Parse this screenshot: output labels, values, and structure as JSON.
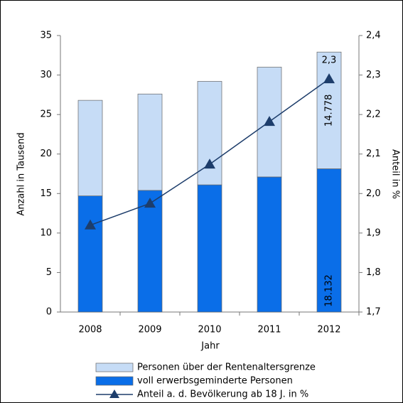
{
  "chart_data": {
    "type": "bar",
    "x_label": "Jahr",
    "y_label": "Anzahl in Tausend",
    "y2_label": "Anteil in %",
    "categories": [
      "2008",
      "2009",
      "2010",
      "2011",
      "2012"
    ],
    "stacked": true,
    "series": [
      {
        "name": "voll erwerbsgeminderte Personen",
        "color": "#0a6ee8",
        "values": [
          14.7,
          15.4,
          16.1,
          17.1,
          18.132
        ],
        "value_labels": [
          null,
          null,
          null,
          null,
          "18.132"
        ]
      },
      {
        "name": "Personen über der Rentenaltersgrenze",
        "color": "#c6dcf6",
        "values": [
          12.1,
          12.2,
          13.1,
          13.9,
          14.778
        ],
        "value_labels": [
          null,
          null,
          null,
          null,
          "14.778"
        ]
      },
      {
        "name": "Anteil a. d. Bevölkerung ab 18 J. in %",
        "type": "line",
        "axis": "y2",
        "color": "#1d3d6b",
        "values": [
          1.92,
          1.975,
          2.074,
          2.182,
          2.29
        ],
        "value_labels": [
          null,
          null,
          null,
          null,
          "2,3"
        ]
      }
    ],
    "ylim": [
      0,
      35
    ],
    "yticks": [
      0,
      5,
      10,
      15,
      20,
      25,
      30,
      35
    ],
    "y2lim": [
      1.7,
      2.4
    ],
    "y2ticks": [
      {
        "value": 1.7,
        "label": "1,7"
      },
      {
        "value": 1.8,
        "label": "1,8"
      },
      {
        "value": 1.9,
        "label": "1,9"
      },
      {
        "value": 2.0,
        "label": "2,0"
      },
      {
        "value": 2.1,
        "label": "2,1"
      },
      {
        "value": 2.2,
        "label": "2,2"
      },
      {
        "value": 2.3,
        "label": "2,3"
      },
      {
        "value": 2.4,
        "label": "2,4"
      }
    ],
    "legend": "bottom"
  }
}
